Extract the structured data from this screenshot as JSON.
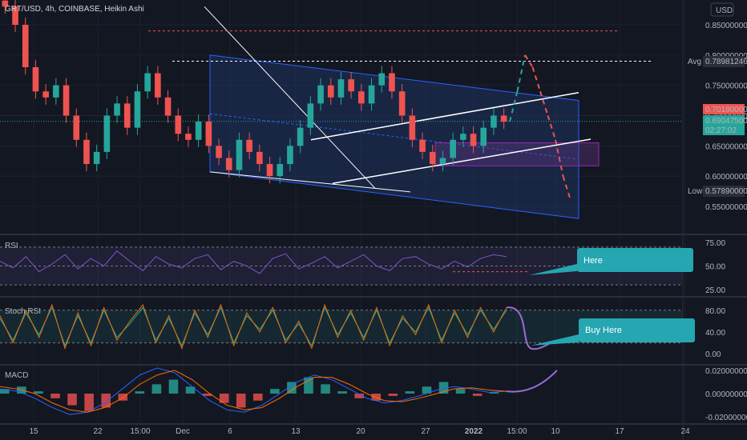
{
  "header": {
    "symbol_line": "GRT/USD, 4h, COINBASE, Heikin Ashi"
  },
  "currency": "USD",
  "colors": {
    "background": "#131722",
    "bull": "#26a69a",
    "bear": "#ef5350",
    "channel_fill": "#1e3a6e",
    "channel_line": "#2962ff",
    "box_fill": "#3b2c5a",
    "box_line": "#9c27b0",
    "rsi_line": "#7e57c2",
    "stoch_k": "#ef6c00",
    "stoch_d": "#26a69a",
    "macd_line": "#2962ff",
    "signal_line": "#ff6d00",
    "forecast_macd": "#9c6bd8",
    "callout": "#26a6b0"
  },
  "price_badges": {
    "avg_label": "Avg",
    "avg_value": "0.78981246",
    "current_red": "0.70180000",
    "current_green": "0.69047500",
    "countdown": "02:27:02",
    "low_label": "Low",
    "low_value": "0.57890000"
  },
  "callouts": {
    "rsi": "Here",
    "stoch": "Buy Here"
  },
  "chart_data": [
    {
      "type": "candlestick",
      "title": "GRT/USD, 4h, COINBASE, Heikin Ashi",
      "y_axis_ticks": [
        "0.85000000",
        "0.80000000",
        "0.75000000",
        "0.70000000",
        "0.65000000",
        "0.60000000",
        "0.55000000"
      ],
      "ylim": [
        0.52,
        0.89
      ],
      "x_axis_ticks": [
        "15",
        "22",
        "15:00",
        "Dec",
        "6",
        "13",
        "20",
        "27",
        "2022",
        "15:00",
        "10",
        "17",
        "24"
      ],
      "series": [
        {
          "name": "heikin_ashi_close",
          "values": [
            0.88,
            0.85,
            0.78,
            0.74,
            0.73,
            0.75,
            0.7,
            0.66,
            0.62,
            0.64,
            0.7,
            0.72,
            0.68,
            0.74,
            0.77,
            0.73,
            0.7,
            0.67,
            0.66,
            0.69,
            0.65,
            0.63,
            0.61,
            0.66,
            0.64,
            0.62,
            0.6,
            0.62,
            0.65,
            0.68,
            0.72,
            0.75,
            0.73,
            0.76,
            0.74,
            0.72,
            0.75,
            0.77,
            0.74,
            0.7,
            0.66,
            0.64,
            0.62,
            0.63,
            0.66,
            0.67,
            0.65,
            0.68,
            0.7,
            0.69
          ]
        },
        {
          "name": "forecast_path",
          "values": [
            0.69,
            0.74,
            0.8,
            0.78,
            0.74,
            0.7,
            0.66,
            0.6,
            0.56
          ]
        },
        {
          "name": "rsi",
          "values": [
            55,
            48,
            60,
            44,
            52,
            62,
            47,
            58,
            50,
            66,
            55,
            45,
            60,
            52,
            48,
            58,
            62,
            46,
            55,
            50,
            42,
            58,
            63,
            47,
            53,
            60,
            48,
            55,
            62,
            50,
            45,
            58,
            60,
            52,
            47,
            55,
            49,
            58,
            62,
            60
          ]
        },
        {
          "name": "stoch_k",
          "values": [
            70,
            20,
            80,
            30,
            90,
            10,
            75,
            15,
            85,
            25,
            60,
            90,
            20,
            70,
            10,
            80,
            30,
            90,
            15,
            75,
            40,
            85,
            20,
            60,
            10,
            90,
            30,
            80,
            25,
            85,
            15,
            70,
            35,
            90,
            20,
            80,
            30,
            85,
            40,
            85
          ]
        },
        {
          "name": "stoch_d",
          "values": [
            65,
            25,
            75,
            35,
            85,
            15,
            70,
            20,
            80,
            30,
            55,
            85,
            25,
            65,
            15,
            75,
            35,
            85,
            20,
            70,
            45,
            80,
            25,
            55,
            15,
            85,
            35,
            75,
            30,
            80,
            20,
            65,
            40,
            85,
            25,
            75,
            35,
            80,
            45,
            80
          ]
        },
        {
          "name": "macd_hist",
          "values": [
            0.004,
            0.006,
            0.002,
            -0.004,
            -0.01,
            -0.015,
            -0.012,
            -0.006,
            0.002,
            0.008,
            0.012,
            0.006,
            -0.002,
            -0.008,
            -0.012,
            -0.006,
            0.004,
            0.01,
            0.014,
            0.008,
            0.002,
            -0.004,
            -0.006,
            -0.002,
            0.002,
            0.006,
            0.01,
            0.004,
            -0.002,
            0.001
          ]
        },
        {
          "name": "macd_line",
          "values": [
            0.004,
            0.002,
            -0.004,
            -0.012,
            -0.018,
            -0.016,
            -0.008,
            0.004,
            0.016,
            0.022,
            0.018,
            0.006,
            -0.006,
            -0.014,
            -0.016,
            -0.01,
            0.0,
            0.01,
            0.016,
            0.012,
            0.004,
            -0.004,
            -0.008,
            -0.006,
            -0.002,
            0.003,
            0.006,
            0.004,
            0.001,
            0.002
          ]
        },
        {
          "name": "signal_line",
          "values": [
            0.006,
            0.004,
            0.0,
            -0.008,
            -0.014,
            -0.016,
            -0.012,
            -0.004,
            0.008,
            0.016,
            0.02,
            0.012,
            0.0,
            -0.01,
            -0.014,
            -0.012,
            -0.004,
            0.006,
            0.014,
            0.014,
            0.008,
            0.0,
            -0.006,
            -0.007,
            -0.004,
            0.0,
            0.004,
            0.005,
            0.003,
            0.002
          ]
        }
      ]
    },
    {
      "type": "line",
      "title": "RSI",
      "y_axis_ticks": [
        "75.00",
        "50.00",
        "25.00"
      ],
      "ylim": [
        15,
        80
      ]
    },
    {
      "type": "line",
      "title": "Stoch RSI",
      "y_axis_ticks": [
        "80.00",
        "40.00",
        "0.00"
      ],
      "ylim": [
        -5,
        100
      ]
    },
    {
      "type": "bar",
      "title": "MACD",
      "y_axis_ticks": [
        "0.02000000",
        "0.00000000",
        "-0.02000000"
      ],
      "ylim": [
        -0.025,
        0.025
      ]
    }
  ]
}
